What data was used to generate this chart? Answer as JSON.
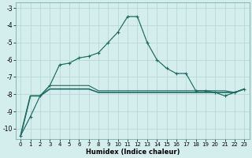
{
  "xlabel": "Humidex (Indice chaleur)",
  "x": [
    0,
    1,
    2,
    3,
    4,
    5,
    6,
    7,
    8,
    9,
    10,
    11,
    12,
    13,
    14,
    15,
    16,
    17,
    18,
    19,
    20,
    21,
    22,
    23
  ],
  "y_peak_solid": [
    -10.4,
    -9.3,
    -8.1,
    -7.5,
    -6.3,
    -6.2,
    -5.9,
    -5.8,
    -5.6,
    -5.0,
    -4.4,
    -3.5,
    -3.5,
    -5.0,
    -6.0,
    -6.5,
    -6.8,
    -6.8,
    -7.8,
    -7.8,
    -7.9,
    -8.1,
    -7.9,
    -7.7
  ],
  "y_peak_dot": [
    -10.4,
    -9.3,
    -8.1,
    -7.5,
    -6.3,
    -6.2,
    -5.9,
    -5.8,
    -5.6,
    -5.0,
    -4.4,
    -3.5,
    -3.5,
    -5.0,
    -6.0,
    -6.5,
    -6.8,
    -6.8,
    -7.8,
    -7.8,
    -7.9,
    -8.1,
    -7.9,
    -7.7
  ],
  "y_flat1": [
    -10.4,
    -8.1,
    -8.1,
    -7.5,
    -7.5,
    -7.5,
    -7.5,
    -7.5,
    -7.8,
    -7.8,
    -7.8,
    -7.8,
    -7.8,
    -7.8,
    -7.8,
    -7.8,
    -7.8,
    -7.8,
    -7.8,
    -7.8,
    -7.8,
    -7.8,
    -7.9,
    -7.7
  ],
  "y_flat2": [
    -10.4,
    -8.1,
    -8.1,
    -7.7,
    -7.7,
    -7.7,
    -7.7,
    -7.7,
    -7.9,
    -7.9,
    -7.9,
    -7.9,
    -7.9,
    -7.9,
    -7.9,
    -7.9,
    -7.9,
    -7.9,
    -7.9,
    -7.9,
    -7.9,
    -7.9,
    -7.9,
    -7.7
  ],
  "bg_color": "#d4eeed",
  "grid_color": "#b8d8d6",
  "line_color": "#1e6b63",
  "ylim": [
    -10.6,
    -2.7
  ],
  "xlim": [
    -0.5,
    23.5
  ],
  "yticks": [
    -10,
    -9,
    -8,
    -7,
    -6,
    -5,
    -4,
    -3
  ],
  "xticks": [
    0,
    1,
    2,
    3,
    4,
    5,
    6,
    7,
    8,
    9,
    10,
    11,
    12,
    13,
    14,
    15,
    16,
    17,
    18,
    19,
    20,
    21,
    22,
    23
  ]
}
